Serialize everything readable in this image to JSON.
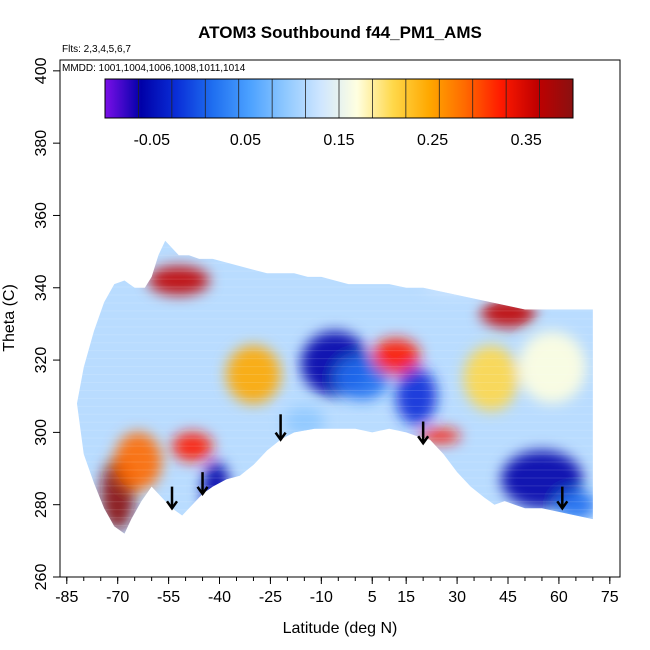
{
  "chart_data": {
    "type": "heatmap",
    "title": "ATOM3 Southbound f44_PM1_AMS",
    "subtitle_flights": "Flts: 2,3,4,5,6,7",
    "subtitle_dates": "MMDD: 1001,1004,1006,1008,1011,1014",
    "xlabel": "Latitude (deg N)",
    "ylabel": "Theta (C)",
    "xlim": [
      -87,
      78
    ],
    "ylim": [
      260,
      403
    ],
    "x_ticks": [
      "-85",
      "-70",
      "-55",
      "-40",
      "-25",
      "-10",
      "5",
      "15",
      "30",
      "45",
      "60",
      "75"
    ],
    "y_ticks": [
      "260",
      "280",
      "300",
      "320",
      "340",
      "360",
      "380",
      "400"
    ],
    "colorbar": {
      "range": [
        -0.1,
        0.4
      ],
      "labels": [
        "-0.05",
        "0.05",
        "0.15",
        "0.25",
        "0.35"
      ],
      "colors": [
        "#7b0fe8",
        "#0000a8",
        "#0a2fd8",
        "#1f6ff0",
        "#4aa0ff",
        "#8ec8ff",
        "#cfe6ff",
        "#ffffe0",
        "#ffd84a",
        "#ffa800",
        "#ff6a00",
        "#ff1a00",
        "#c00000",
        "#8a1010"
      ]
    },
    "profile_bottom": [
      [
        -82,
        308
      ],
      [
        -80,
        294
      ],
      [
        -77,
        286
      ],
      [
        -74,
        279
      ],
      [
        -71,
        274
      ],
      [
        -68,
        272
      ],
      [
        -66,
        276
      ],
      [
        -63,
        281
      ],
      [
        -60,
        285
      ],
      [
        -57,
        282
      ],
      [
        -54,
        279
      ],
      [
        -51,
        277
      ],
      [
        -48,
        280
      ],
      [
        -45,
        283
      ],
      [
        -42,
        285
      ],
      [
        -38,
        287
      ],
      [
        -34,
        288
      ],
      [
        -30,
        291
      ],
      [
        -26,
        295
      ],
      [
        -22,
        298
      ],
      [
        -18,
        300
      ],
      [
        -12,
        301
      ],
      [
        -6,
        301
      ],
      [
        0,
        301
      ],
      [
        5,
        300
      ],
      [
        10,
        301
      ],
      [
        15,
        300
      ],
      [
        18,
        299
      ],
      [
        22,
        298
      ],
      [
        26,
        294
      ],
      [
        30,
        289
      ],
      [
        34,
        285
      ],
      [
        38,
        282
      ],
      [
        41,
        280
      ],
      [
        44,
        281
      ],
      [
        47,
        280
      ],
      [
        50,
        279
      ],
      [
        55,
        279
      ],
      [
        60,
        278
      ],
      [
        65,
        277
      ],
      [
        70,
        276
      ]
    ],
    "profile_top": [
      [
        -82,
        308
      ],
      [
        -80,
        318
      ],
      [
        -77,
        328
      ],
      [
        -74,
        336
      ],
      [
        -71,
        341
      ],
      [
        -68,
        342
      ],
      [
        -65,
        340
      ],
      [
        -62,
        340
      ],
      [
        -60,
        343
      ],
      [
        -58,
        349
      ],
      [
        -56,
        353
      ],
      [
        -54,
        351
      ],
      [
        -52,
        349
      ],
      [
        -49,
        349
      ],
      [
        -46,
        348
      ],
      [
        -42,
        348
      ],
      [
        -38,
        347
      ],
      [
        -34,
        346
      ],
      [
        -30,
        345
      ],
      [
        -26,
        344
      ],
      [
        -22,
        344
      ],
      [
        -18,
        344
      ],
      [
        -14,
        343
      ],
      [
        -10,
        343
      ],
      [
        -6,
        342
      ],
      [
        -2,
        341
      ],
      [
        2,
        341
      ],
      [
        6,
        341
      ],
      [
        10,
        341
      ],
      [
        15,
        340
      ],
      [
        20,
        340
      ],
      [
        25,
        339
      ],
      [
        30,
        338
      ],
      [
        35,
        337
      ],
      [
        40,
        336
      ],
      [
        45,
        335
      ],
      [
        50,
        334
      ],
      [
        55,
        334
      ],
      [
        60,
        334
      ],
      [
        65,
        334
      ],
      [
        70,
        334
      ]
    ],
    "blobs": [
      {
        "lat": -70,
        "theta": 283,
        "rx": 5,
        "ry": 10,
        "value": 0.38
      },
      {
        "lat": -64,
        "theta": 292,
        "rx": 7,
        "ry": 8,
        "value": 0.27
      },
      {
        "lat": -52,
        "theta": 342,
        "rx": 9,
        "ry": 4,
        "value": 0.34
      },
      {
        "lat": -41,
        "theta": 284,
        "rx": 4,
        "ry": 8,
        "value": -0.04
      },
      {
        "lat": -48,
        "theta": 296,
        "rx": 6,
        "ry": 4,
        "value": 0.3
      },
      {
        "lat": -6,
        "theta": 319,
        "rx": 10,
        "ry": 9,
        "value": -0.04
      },
      {
        "lat": 2,
        "theta": 315,
        "rx": 8,
        "ry": 6,
        "value": 0.02
      },
      {
        "lat": 12,
        "theta": 321,
        "rx": 7,
        "ry": 5,
        "value": 0.32
      },
      {
        "lat": 18,
        "theta": 310,
        "rx": 6,
        "ry": 8,
        "value": 0.0
      },
      {
        "lat": 25,
        "theta": 299,
        "rx": 6,
        "ry": 2,
        "value": 0.31
      },
      {
        "lat": 45,
        "theta": 333,
        "rx": 8,
        "ry": 4,
        "value": 0.35
      },
      {
        "lat": 55,
        "theta": 287,
        "rx": 12,
        "ry": 8,
        "value": -0.04
      },
      {
        "lat": 65,
        "theta": 280,
        "rx": 6,
        "ry": 4,
        "value": 0.04
      },
      {
        "lat": -30,
        "theta": 316,
        "rx": 8,
        "ry": 8,
        "value": 0.23
      },
      {
        "lat": 40,
        "theta": 315,
        "rx": 8,
        "ry": 9,
        "value": 0.22
      },
      {
        "lat": 58,
        "theta": 318,
        "rx": 10,
        "ry": 10,
        "value": 0.17
      },
      {
        "lat": -15,
        "theta": 303,
        "rx": 6,
        "ry": 4,
        "value": 0.1
      },
      {
        "lat": 30,
        "theta": 340,
        "rx": 10,
        "ry": 2,
        "value": 0.14
      }
    ],
    "arrows": [
      {
        "lat": -54,
        "theta_top": 285,
        "theta_tip": 279
      },
      {
        "lat": -45,
        "theta_top": 289,
        "theta_tip": 283
      },
      {
        "lat": -22,
        "theta_top": 305,
        "theta_tip": 298
      },
      {
        "lat": 20,
        "theta_top": 303,
        "theta_tip": 297
      },
      {
        "lat": 61,
        "theta_top": 285,
        "theta_tip": 279
      }
    ]
  }
}
